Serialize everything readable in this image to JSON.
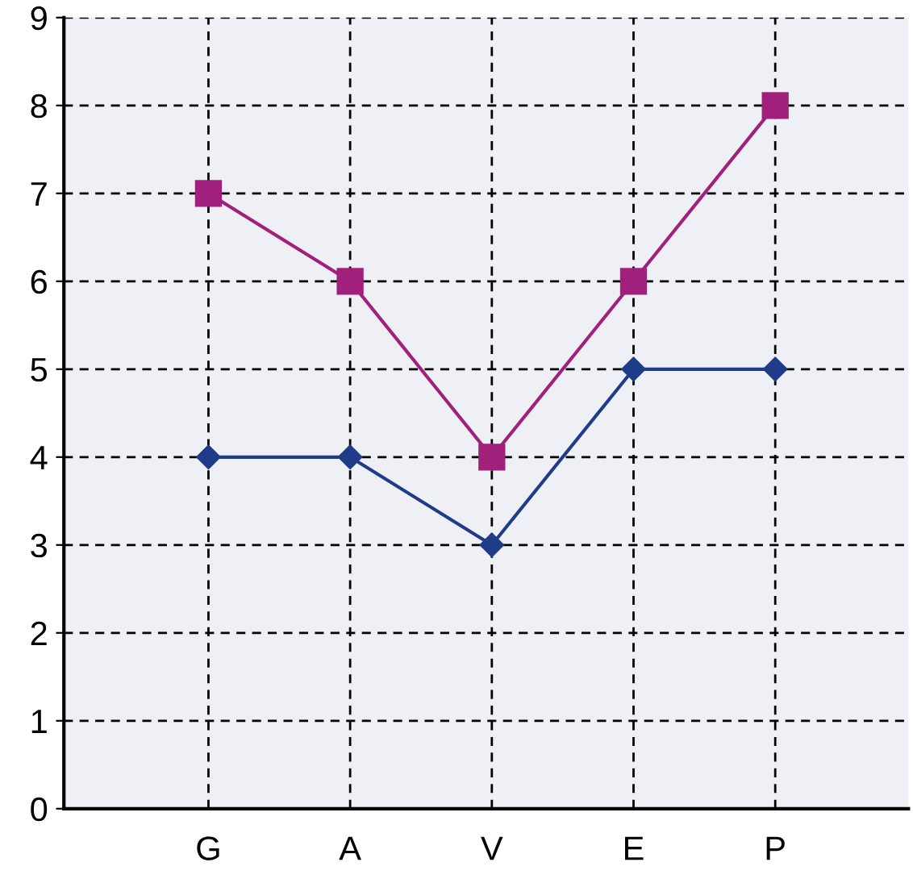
{
  "chart_data": {
    "type": "line",
    "categories": [
      "G",
      "A",
      "V",
      "E",
      "P"
    ],
    "series": [
      {
        "color": "#a0207c",
        "values": [
          7,
          6,
          4,
          6,
          8
        ],
        "marker": "square"
      },
      {
        "color": "#1f3c88",
        "values": [
          4,
          4,
          3,
          5,
          5
        ],
        "marker": "diamond"
      }
    ],
    "ylim": [
      0,
      9
    ],
    "yticks": [
      0,
      1,
      2,
      3,
      4,
      5,
      6,
      7,
      8,
      9
    ],
    "grid": true,
    "line_style": "solid"
  }
}
